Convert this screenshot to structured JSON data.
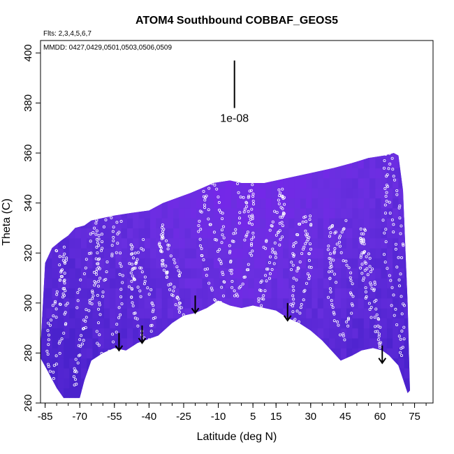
{
  "chart_data": {
    "type": "scatter",
    "title": "ATOM4 Southbound COBBAF_GEOS5",
    "flights_note": "Flts: 2,3,4,5,6,7",
    "dates_note": "MMDD: 0427,0429,0501,0503,0506,0509",
    "xlabel": "Latitude (deg N)",
    "ylabel": "Theta (C)",
    "xlim": [
      -87,
      83
    ],
    "ylim": [
      260,
      405
    ],
    "x_ticks": [
      -85,
      -70,
      -55,
      -40,
      -25,
      -10,
      5,
      15,
      30,
      45,
      60,
      75
    ],
    "y_ticks": [
      260,
      280,
      300,
      320,
      340,
      360,
      380,
      400
    ],
    "scale_label": "1e-08",
    "scale_bar": {
      "x": -3,
      "y_from": 378,
      "y_to": 397
    },
    "colors": {
      "field_base": "#6a2fe0",
      "field_high": "#7c22ef",
      "field_low": "#4a22cc",
      "point_marker": "#ffffff",
      "wind_arrow": "#000000",
      "axis": "#000000"
    },
    "upper_boundary": [
      [
        -87,
        282
      ],
      [
        -85,
        316
      ],
      [
        -82,
        322
      ],
      [
        -78,
        325
      ],
      [
        -75,
        327
      ],
      [
        -72,
        330
      ],
      [
        -68,
        331
      ],
      [
        -65,
        333
      ],
      [
        -60,
        334
      ],
      [
        -55,
        335
      ],
      [
        -48,
        336
      ],
      [
        -40,
        337
      ],
      [
        -34,
        340
      ],
      [
        -28,
        342
      ],
      [
        -22,
        344
      ],
      [
        -17,
        346
      ],
      [
        -12,
        348
      ],
      [
        -5,
        349
      ],
      [
        0,
        348
      ],
      [
        10,
        348
      ],
      [
        20,
        350
      ],
      [
        30,
        352
      ],
      [
        40,
        354
      ],
      [
        48,
        356
      ],
      [
        55,
        358
      ],
      [
        62,
        359
      ],
      [
        66,
        360
      ],
      [
        68,
        359
      ],
      [
        70,
        345
      ],
      [
        72,
        300
      ],
      [
        73,
        265
      ]
    ],
    "lower_boundary": [
      [
        -87,
        278
      ],
      [
        -84,
        273
      ],
      [
        -80,
        266
      ],
      [
        -77,
        262
      ],
      [
        -70,
        262
      ],
      [
        -68,
        269
      ],
      [
        -65,
        277
      ],
      [
        -60,
        280
      ],
      [
        -55,
        282
      ],
      [
        -50,
        281
      ],
      [
        -45,
        284
      ],
      [
        -42,
        285
      ],
      [
        -36,
        287
      ],
      [
        -30,
        292
      ],
      [
        -25,
        295
      ],
      [
        -20,
        296
      ],
      [
        -15,
        298
      ],
      [
        -10,
        301
      ],
      [
        -5,
        299
      ],
      [
        0,
        298
      ],
      [
        5,
        299
      ],
      [
        10,
        298
      ],
      [
        15,
        297
      ],
      [
        20,
        294
      ],
      [
        25,
        292
      ],
      [
        30,
        289
      ],
      [
        35,
        285
      ],
      [
        40,
        280
      ],
      [
        43,
        277
      ],
      [
        48,
        279
      ],
      [
        52,
        281
      ],
      [
        57,
        282
      ],
      [
        61,
        281
      ],
      [
        64,
        279
      ],
      [
        68,
        275
      ],
      [
        72,
        264
      ],
      [
        73,
        265
      ]
    ],
    "wind_arrows": [
      {
        "x": -53,
        "y_from": 288,
        "y_to": 281
      },
      {
        "x": -43,
        "y_from": 291,
        "y_to": 284
      },
      {
        "x": -20,
        "y_from": 303,
        "y_to": 296
      },
      {
        "x": 20,
        "y_from": 300,
        "y_to": 293
      },
      {
        "x": 61,
        "y_from": 283,
        "y_to": 276
      }
    ],
    "flight_profiles": [
      {
        "lat_start": -84,
        "lat_end": -76,
        "theta_low": 268,
        "theta_high": 322
      },
      {
        "lat_start": -72,
        "lat_end": -62,
        "theta_low": 266,
        "theta_high": 333
      },
      {
        "lat_start": -62,
        "lat_end": -52,
        "theta_low": 272,
        "theta_high": 336
      },
      {
        "lat_start": -48,
        "lat_end": -38,
        "theta_low": 283,
        "theta_high": 324
      },
      {
        "lat_start": -35,
        "lat_end": -25,
        "theta_low": 289,
        "theta_high": 330
      },
      {
        "lat_start": -18,
        "lat_end": -8,
        "theta_low": 296,
        "theta_high": 350
      },
      {
        "lat_start": -5,
        "lat_end": 5,
        "theta_low": 302,
        "theta_high": 347
      },
      {
        "lat_start": 8,
        "lat_end": 18,
        "theta_low": 296,
        "theta_high": 346
      },
      {
        "lat_start": 22,
        "lat_end": 30,
        "theta_low": 290,
        "theta_high": 335
      },
      {
        "lat_start": 38,
        "lat_end": 48,
        "theta_low": 286,
        "theta_high": 332
      },
      {
        "lat_start": 52,
        "lat_end": 60,
        "theta_low": 282,
        "theta_high": 330
      },
      {
        "lat_start": 62,
        "lat_end": 70,
        "theta_low": 278,
        "theta_high": 360
      }
    ]
  }
}
